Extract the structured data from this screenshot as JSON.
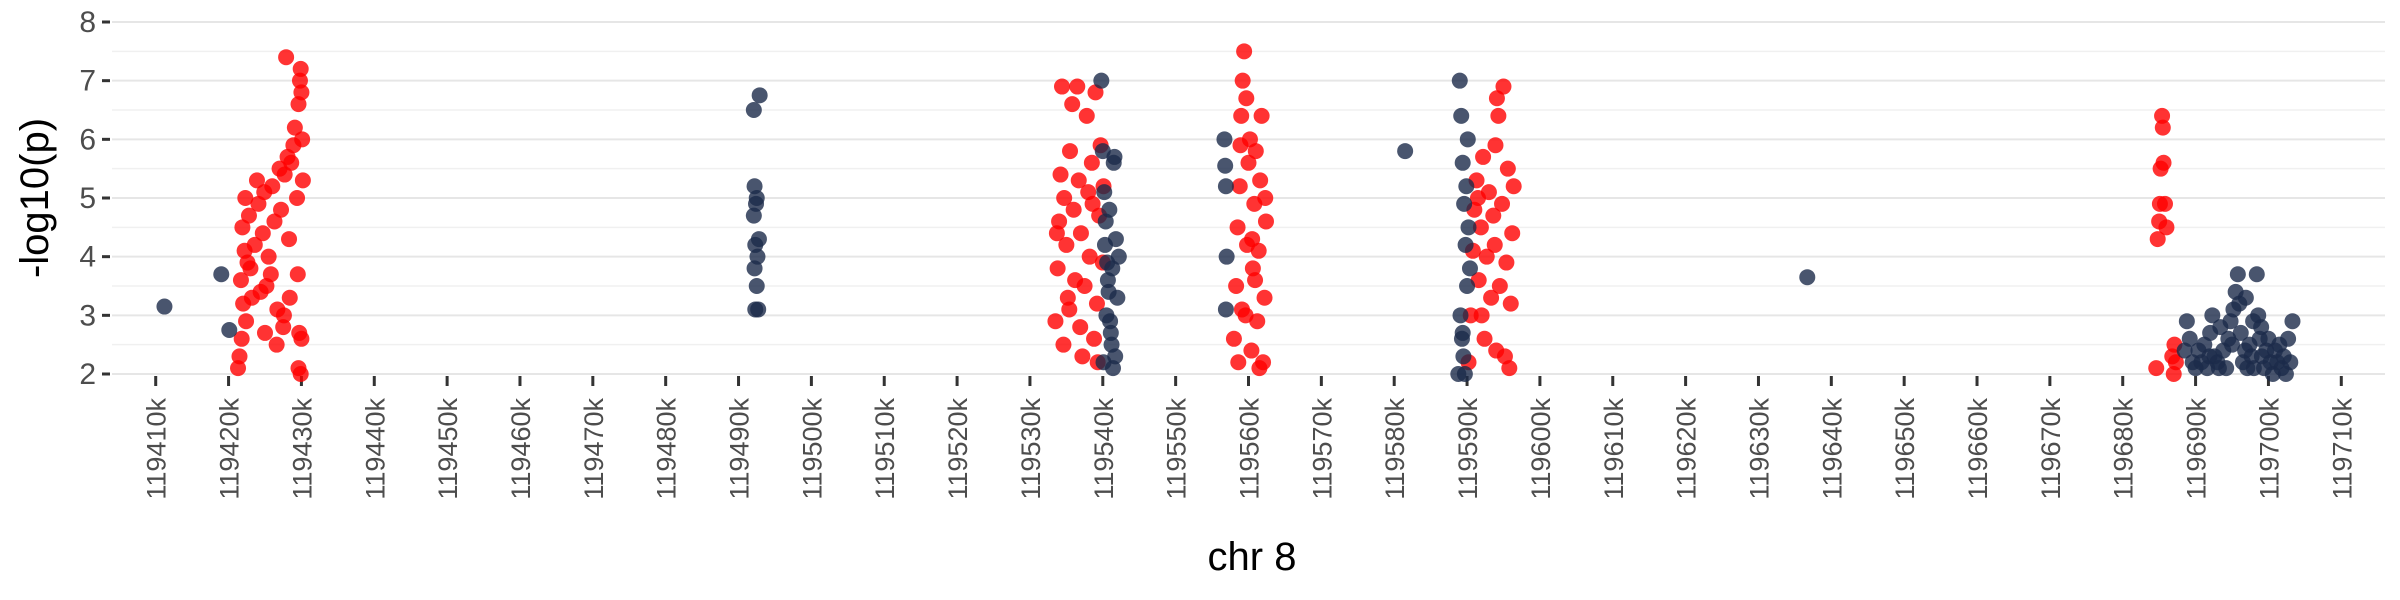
{
  "chart_data": {
    "type": "scatter",
    "title": "",
    "xlabel": "chr 8",
    "ylabel": "-log10(p)",
    "xlim": [
      119404,
      119716
    ],
    "ylim": [
      2,
      8
    ],
    "x_unit_suffix": "k",
    "x_ticks": [
      119410,
      119420,
      119430,
      119440,
      119450,
      119460,
      119470,
      119480,
      119490,
      119500,
      119510,
      119520,
      119530,
      119540,
      119550,
      119560,
      119570,
      119580,
      119590,
      119600,
      119610,
      119620,
      119630,
      119640,
      119650,
      119660,
      119670,
      119680,
      119690,
      119700,
      119710
    ],
    "y_ticks": [
      2,
      3,
      4,
      5,
      6,
      7,
      8
    ],
    "grid": true,
    "legend": "none",
    "colors": {
      "red": "#ff0000",
      "navy": "#1b2a4a"
    },
    "series": [
      {
        "color": "red",
        "points": [
          [
            119421.5,
            2.3
          ],
          [
            119421.8,
            2.6
          ],
          [
            119422.0,
            3.2
          ],
          [
            119421.7,
            3.6
          ],
          [
            119422.2,
            4.1
          ],
          [
            119421.9,
            4.5
          ],
          [
            119422.3,
            5.0
          ],
          [
            119422.6,
            3.9
          ],
          [
            119422.8,
            4.7
          ],
          [
            119423.2,
            3.3
          ],
          [
            119423.6,
            4.2
          ],
          [
            119423.9,
            5.3
          ],
          [
            119424.1,
            4.9
          ],
          [
            119424.4,
            3.4
          ],
          [
            119424.7,
            4.4
          ],
          [
            119424.9,
            5.1
          ],
          [
            119425.2,
            3.5
          ],
          [
            119425.5,
            4.0
          ],
          [
            119425.8,
            3.7
          ],
          [
            119426.0,
            5.2
          ],
          [
            119426.3,
            4.6
          ],
          [
            119426.6,
            2.5
          ],
          [
            119426.7,
            3.1
          ],
          [
            119427.0,
            5.5
          ],
          [
            119427.2,
            4.8
          ],
          [
            119427.5,
            2.8
          ],
          [
            119427.7,
            5.4
          ],
          [
            119427.9,
            7.4
          ],
          [
            119428.1,
            5.7
          ],
          [
            119428.3,
            4.3
          ],
          [
            119428.6,
            5.6
          ],
          [
            119428.9,
            5.9
          ],
          [
            119429.1,
            6.2
          ],
          [
            119429.4,
            5.0
          ],
          [
            119429.6,
            6.6
          ],
          [
            119429.8,
            7.0
          ],
          [
            119429.9,
            7.2
          ],
          [
            119430.0,
            6.8
          ],
          [
            119430.1,
            6.0
          ],
          [
            119430.2,
            5.3
          ],
          [
            119429.5,
            3.7
          ],
          [
            119429.7,
            2.7
          ],
          [
            119430.0,
            2.6
          ],
          [
            119429.6,
            2.1
          ],
          [
            119429.9,
            2.0
          ],
          [
            119421.3,
            2.1
          ],
          [
            119422.4,
            2.9
          ],
          [
            119423.0,
            3.8
          ],
          [
            119425.0,
            2.7
          ],
          [
            119427.6,
            3.0
          ],
          [
            119428.4,
            3.3
          ],
          [
            119533.5,
            2.9
          ],
          [
            119533.8,
            3.8
          ],
          [
            119534.0,
            4.6
          ],
          [
            119534.2,
            5.4
          ],
          [
            119534.4,
            6.9
          ],
          [
            119534.7,
            5.0
          ],
          [
            119535.0,
            4.2
          ],
          [
            119535.2,
            3.3
          ],
          [
            119535.5,
            5.8
          ],
          [
            119535.8,
            6.6
          ],
          [
            119536.0,
            4.8
          ],
          [
            119536.2,
            3.6
          ],
          [
            119536.5,
            6.9
          ],
          [
            119536.7,
            5.3
          ],
          [
            119537.0,
            4.4
          ],
          [
            119537.2,
            2.3
          ],
          [
            119537.5,
            3.5
          ],
          [
            119537.8,
            6.4
          ],
          [
            119538.0,
            5.1
          ],
          [
            119538.2,
            4.0
          ],
          [
            119538.5,
            5.6
          ],
          [
            119538.8,
            2.6
          ],
          [
            119539.0,
            6.8
          ],
          [
            119539.2,
            3.2
          ],
          [
            119539.5,
            4.7
          ],
          [
            119539.7,
            5.9
          ],
          [
            119540.0,
            3.9
          ],
          [
            119540.1,
            5.2
          ],
          [
            119534.6,
            2.5
          ],
          [
            119535.4,
            3.1
          ],
          [
            119536.9,
            2.8
          ],
          [
            119538.6,
            4.9
          ],
          [
            119533.7,
            4.4
          ],
          [
            119539.3,
            2.2
          ],
          [
            119558.0,
            2.6
          ],
          [
            119558.3,
            3.5
          ],
          [
            119558.5,
            4.5
          ],
          [
            119558.8,
            5.2
          ],
          [
            119559.0,
            6.4
          ],
          [
            119559.2,
            7.0
          ],
          [
            119559.4,
            7.5
          ],
          [
            119559.6,
            3.0
          ],
          [
            119559.8,
            4.2
          ],
          [
            119560.0,
            5.6
          ],
          [
            119560.2,
            6.0
          ],
          [
            119560.4,
            2.4
          ],
          [
            119560.6,
            3.8
          ],
          [
            119560.8,
            4.9
          ],
          [
            119561.0,
            5.8
          ],
          [
            119561.2,
            2.9
          ],
          [
            119561.4,
            4.1
          ],
          [
            119561.6,
            5.3
          ],
          [
            119561.8,
            6.4
          ],
          [
            119562.0,
            2.2
          ],
          [
            119562.2,
            3.3
          ],
          [
            119562.4,
            4.6
          ],
          [
            119558.6,
            2.2
          ],
          [
            119559.1,
            3.1
          ],
          [
            119559.7,
            6.7
          ],
          [
            119560.5,
            4.3
          ],
          [
            119561.5,
            2.1
          ],
          [
            119562.3,
            5.0
          ],
          [
            119558.9,
            5.9
          ],
          [
            119560.9,
            3.6
          ],
          [
            119590.2,
            2.2
          ],
          [
            119590.5,
            3.0
          ],
          [
            119590.8,
            4.1
          ],
          [
            119591.0,
            4.8
          ],
          [
            119591.3,
            5.3
          ],
          [
            119591.6,
            3.6
          ],
          [
            119591.9,
            4.5
          ],
          [
            119592.2,
            5.7
          ],
          [
            119592.4,
            2.6
          ],
          [
            119592.7,
            4.0
          ],
          [
            119593.0,
            5.1
          ],
          [
            119593.3,
            3.3
          ],
          [
            119593.6,
            4.7
          ],
          [
            119593.9,
            5.9
          ],
          [
            119594.1,
            6.7
          ],
          [
            119594.3,
            6.4
          ],
          [
            119594.5,
            3.5
          ],
          [
            119594.8,
            4.9
          ],
          [
            119595.0,
            6.9
          ],
          [
            119595.2,
            2.3
          ],
          [
            119595.4,
            3.9
          ],
          [
            119595.6,
            5.5
          ],
          [
            119595.8,
            2.1
          ],
          [
            119596.0,
            3.2
          ],
          [
            119596.2,
            4.4
          ],
          [
            119596.4,
            5.2
          ],
          [
            119594.0,
            2.4
          ],
          [
            119592.0,
            3.0
          ],
          [
            119591.5,
            5.0
          ],
          [
            119593.8,
            4.2
          ],
          [
            119684.8,
            4.3
          ],
          [
            119685.0,
            4.6
          ],
          [
            119685.2,
            5.5
          ],
          [
            119685.4,
            6.4
          ],
          [
            119685.5,
            6.2
          ],
          [
            119685.6,
            5.6
          ],
          [
            119685.8,
            4.9
          ],
          [
            119686.0,
            4.5
          ],
          [
            119685.1,
            4.9
          ],
          [
            119684.6,
            2.1
          ],
          [
            119686.8,
            2.3
          ],
          [
            119687.1,
            2.5
          ],
          [
            119687.3,
            2.2
          ],
          [
            119687.0,
            2.0
          ]
        ]
      },
      {
        "color": "navy",
        "points": [
          [
            119411.2,
            3.15
          ],
          [
            119419.0,
            3.7
          ],
          [
            119420.1,
            2.75
          ],
          [
            119492.1,
            6.5
          ],
          [
            119492.9,
            6.75
          ],
          [
            119492.2,
            5.2
          ],
          [
            119492.4,
            4.9
          ],
          [
            119492.1,
            4.7
          ],
          [
            119492.3,
            4.2
          ],
          [
            119492.6,
            4.0
          ],
          [
            119492.2,
            3.8
          ],
          [
            119492.5,
            3.5
          ],
          [
            119492.3,
            3.1
          ],
          [
            119492.7,
            3.1
          ],
          [
            119492.5,
            5.0
          ],
          [
            119492.8,
            4.3
          ],
          [
            119539.8,
            7.0
          ],
          [
            119540.0,
            5.8
          ],
          [
            119540.2,
            5.1
          ],
          [
            119540.4,
            4.6
          ],
          [
            119540.6,
            3.9
          ],
          [
            119540.8,
            3.4
          ],
          [
            119541.0,
            2.9
          ],
          [
            119541.2,
            2.5
          ],
          [
            119541.4,
            2.1
          ],
          [
            119540.3,
            4.2
          ],
          [
            119540.7,
            3.6
          ],
          [
            119541.1,
            2.7
          ],
          [
            119541.5,
            5.6
          ],
          [
            119541.8,
            4.3
          ],
          [
            119542.0,
            3.3
          ],
          [
            119542.2,
            4.0
          ],
          [
            119540.1,
            2.2
          ],
          [
            119540.5,
            3.0
          ],
          [
            119541.6,
            5.7
          ],
          [
            119540.9,
            4.8
          ],
          [
            119541.3,
            3.8
          ],
          [
            119541.7,
            2.3
          ],
          [
            119556.7,
            6.0
          ],
          [
            119556.8,
            5.55
          ],
          [
            119556.9,
            5.2
          ],
          [
            119557.0,
            4.0
          ],
          [
            119556.9,
            3.1
          ],
          [
            119581.5,
            5.8
          ],
          [
            119589.0,
            7.0
          ],
          [
            119589.2,
            6.4
          ],
          [
            119589.4,
            5.6
          ],
          [
            119589.6,
            4.9
          ],
          [
            119589.8,
            4.2
          ],
          [
            119590.0,
            3.5
          ],
          [
            119589.1,
            3.0
          ],
          [
            119589.3,
            2.6
          ],
          [
            119589.5,
            2.3
          ],
          [
            119589.7,
            2.0
          ],
          [
            119588.8,
            2.0
          ],
          [
            119589.9,
            5.2
          ],
          [
            119590.2,
            4.5
          ],
          [
            119590.4,
            3.8
          ],
          [
            119589.4,
            2.7
          ],
          [
            119590.1,
            6.0
          ],
          [
            119636.7,
            3.65
          ],
          [
            119688.5,
            2.4
          ],
          [
            119688.8,
            2.9
          ],
          [
            119689.2,
            2.6
          ],
          [
            119689.6,
            2.2
          ],
          [
            119690.0,
            2.1
          ],
          [
            119690.4,
            2.4
          ],
          [
            119690.8,
            2.2
          ],
          [
            119691.2,
            2.5
          ],
          [
            119691.6,
            2.1
          ],
          [
            119692.0,
            2.7
          ],
          [
            119692.3,
            3.0
          ],
          [
            119692.6,
            2.3
          ],
          [
            119693.0,
            2.2
          ],
          [
            119693.4,
            2.8
          ],
          [
            119693.8,
            2.4
          ],
          [
            119694.2,
            2.1
          ],
          [
            119694.5,
            2.6
          ],
          [
            119694.8,
            2.9
          ],
          [
            119695.2,
            3.1
          ],
          [
            119695.5,
            3.4
          ],
          [
            119695.8,
            3.7
          ],
          [
            119696.0,
            3.2
          ],
          [
            119696.2,
            2.7
          ],
          [
            119696.5,
            2.2
          ],
          [
            119696.8,
            2.4
          ],
          [
            119697.1,
            2.1
          ],
          [
            119697.4,
            2.5
          ],
          [
            119697.7,
            2.3
          ],
          [
            119698.0,
            2.1
          ],
          [
            119698.4,
            3.7
          ],
          [
            119698.6,
            3.0
          ],
          [
            119698.8,
            2.6
          ],
          [
            119699.1,
            2.3
          ],
          [
            119699.4,
            2.1
          ],
          [
            119699.7,
            2.4
          ],
          [
            119700.0,
            2.6
          ],
          [
            119700.3,
            2.2
          ],
          [
            119700.6,
            2.0
          ],
          [
            119700.9,
            2.4
          ],
          [
            119701.2,
            2.2
          ],
          [
            119701.5,
            2.5
          ],
          [
            119701.8,
            2.1
          ],
          [
            119702.1,
            2.3
          ],
          [
            119702.4,
            2.0
          ],
          [
            119702.7,
            2.6
          ],
          [
            119703.0,
            2.2
          ],
          [
            119703.3,
            2.9
          ],
          [
            119695.0,
            2.5
          ],
          [
            119693.2,
            2.1
          ],
          [
            119691.9,
            2.3
          ],
          [
            119697.9,
            2.9
          ],
          [
            119696.9,
            3.3
          ],
          [
            119699.0,
            2.8
          ]
        ]
      }
    ]
  }
}
